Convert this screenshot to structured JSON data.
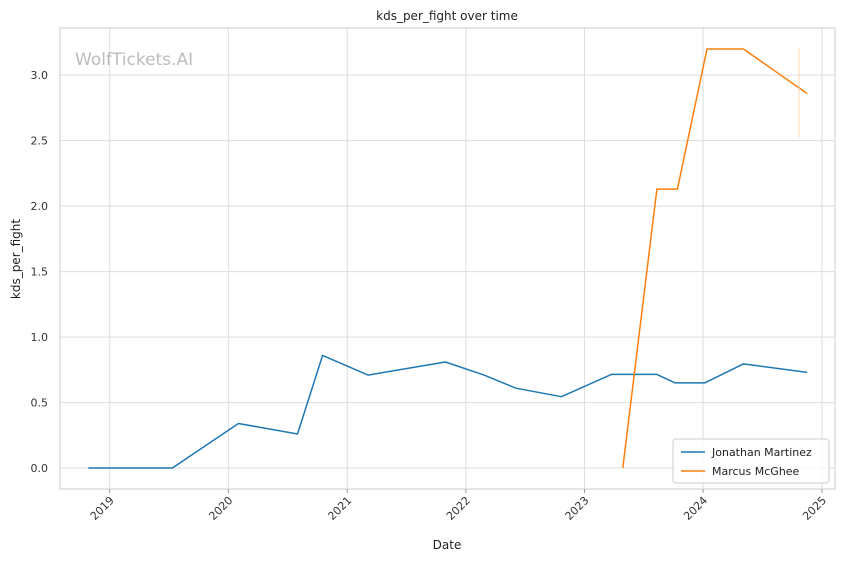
{
  "chart_data": {
    "type": "line",
    "title": "kds_per_fight over time",
    "xlabel": "Date",
    "ylabel": "kds_per_fight",
    "watermark": "WolfTickets.AI",
    "x_ticks": [
      "2019",
      "2020",
      "2021",
      "2022",
      "2023",
      "2024",
      "2025"
    ],
    "y_ticks": [
      "0.0",
      "0.5",
      "1.0",
      "1.5",
      "2.0",
      "2.5",
      "3.0"
    ],
    "xlim": [
      "2018-08-01",
      "2025-02-10"
    ],
    "ylim": [
      -0.16,
      3.36
    ],
    "grid": true,
    "legend_position": "lower-right",
    "series": [
      {
        "name": "Jonathan Martinez",
        "color": "#1f77b4",
        "points": [
          {
            "x": "2018-10-27",
            "y": 0.0
          },
          {
            "x": "2019-07-13",
            "y": 0.0
          },
          {
            "x": "2020-02-01",
            "y": 0.34
          },
          {
            "x": "2020-08-01",
            "y": 0.26
          },
          {
            "x": "2020-10-17",
            "y": 0.86
          },
          {
            "x": "2021-03-06",
            "y": 0.71
          },
          {
            "x": "2021-10-30",
            "y": 0.81
          },
          {
            "x": "2022-02-26",
            "y": 0.71
          },
          {
            "x": "2022-06-04",
            "y": 0.61
          },
          {
            "x": "2022-10-22",
            "y": 0.545
          },
          {
            "x": "2023-03-25",
            "y": 0.715
          },
          {
            "x": "2023-08-12",
            "y": 0.715
          },
          {
            "x": "2023-10-07",
            "y": 0.65
          },
          {
            "x": "2024-01-06",
            "y": 0.65
          },
          {
            "x": "2024-05-04",
            "y": 0.795
          },
          {
            "x": "2024-11-16",
            "y": 0.73
          }
        ]
      },
      {
        "name": "Marcus McGhee",
        "color": "#ff7f0e",
        "points": [
          {
            "x": "2023-04-29",
            "y": 0.0
          },
          {
            "x": "2023-08-12",
            "y": 2.13
          },
          {
            "x": "2023-10-14",
            "y": 2.13
          },
          {
            "x": "2024-01-13",
            "y": 3.2
          },
          {
            "x": "2024-05-04",
            "y": 3.2
          },
          {
            "x": "2024-11-16",
            "y": 2.86
          }
        ]
      }
    ]
  }
}
